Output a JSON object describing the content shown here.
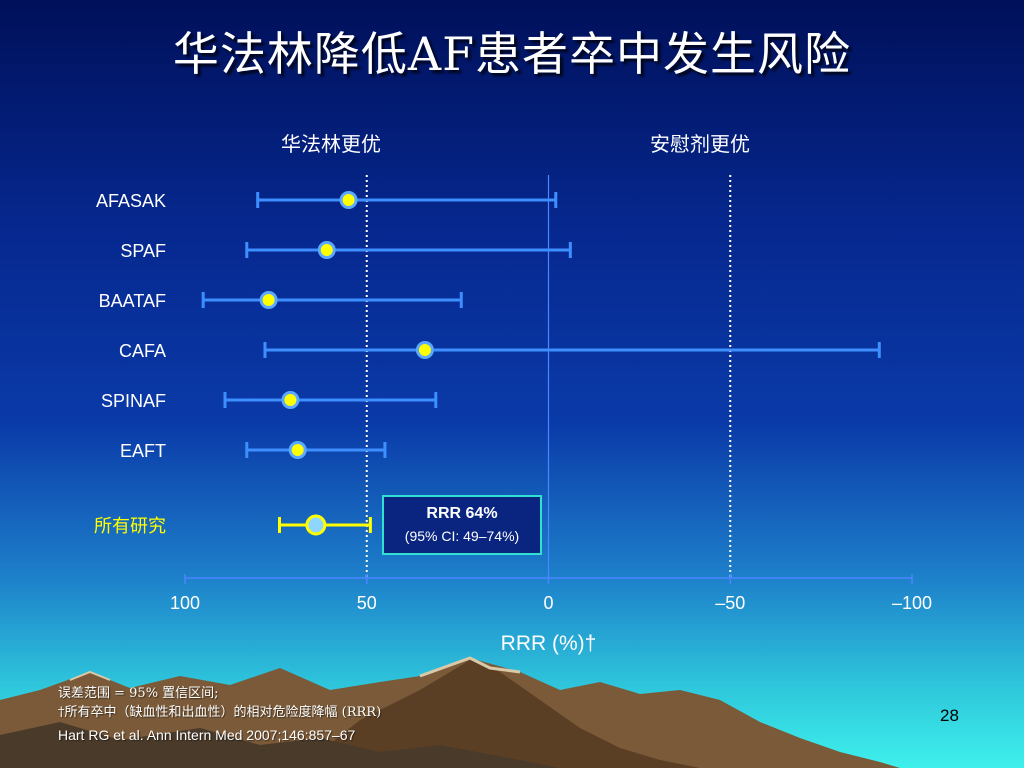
{
  "title": "华法林降低AF患者卒中发生风险",
  "labels": {
    "left_better": "华法林更优",
    "right_better": "安慰剂更优"
  },
  "colors": {
    "ci_line": "#3d8fff",
    "point_fill": "#ffff00",
    "point_stroke": "#5aa8ff",
    "pooled_ci_line": "#ffff00",
    "pooled_point_fill": "#8fd6ff",
    "pooled_label": "#ffff00",
    "box_border": "#30e0d0"
  },
  "chart_data": {
    "type": "forest",
    "xlabel": "RRR (%)†",
    "xlim": [
      100,
      -100
    ],
    "xticks": [
      100,
      50,
      0,
      -50,
      -100
    ],
    "xtick_labels": [
      "100",
      "50",
      "0",
      "–50",
      "–100"
    ],
    "reference_lines": [
      50,
      0,
      -50
    ],
    "studies": [
      {
        "name": "AFASAK",
        "estimate": 55,
        "ci": [
          80,
          -2
        ]
      },
      {
        "name": "SPAF",
        "estimate": 61,
        "ci": [
          83,
          -6
        ]
      },
      {
        "name": "BAATAF",
        "estimate": 77,
        "ci": [
          95,
          24
        ]
      },
      {
        "name": "CAFA",
        "estimate": 34,
        "ci": [
          78,
          -91
        ]
      },
      {
        "name": "SPINAF",
        "estimate": 71,
        "ci": [
          89,
          31
        ]
      },
      {
        "name": "EAFT",
        "estimate": 69,
        "ci": [
          83,
          45
        ]
      }
    ],
    "pooled": {
      "name": "所有研究",
      "estimate": 64,
      "ci": [
        74,
        49
      ]
    },
    "annotation": {
      "line1": "RRR 64%",
      "line2": "(95% CI: 49–74%)"
    }
  },
  "notes": {
    "line1": "误差范围 = 95% 置信区间;",
    "line2": "†所有卒中（缺血性和出血性）的相对危险度降幅 (RRR)"
  },
  "citation": "Hart RG et al. Ann Intern Med 2007;146:857–67",
  "page_number": "28"
}
